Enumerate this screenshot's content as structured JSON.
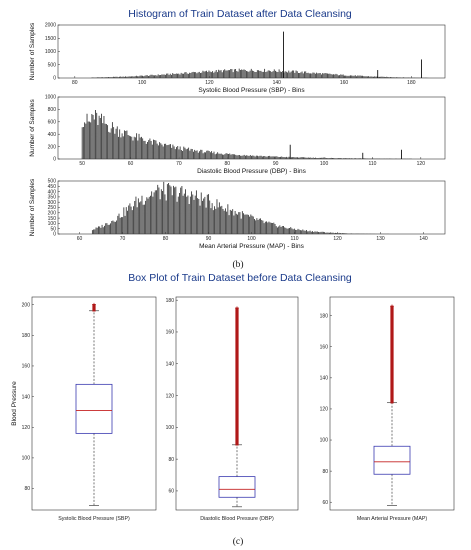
{
  "figure": {
    "top_title": "Histogram of Train Dataset after Data Cleansing",
    "top_caption": "(b)",
    "bottom_title": "Box Plot of Train Dataset before Data Cleansing",
    "bottom_caption": "(c)"
  },
  "colors": {
    "title": "#1a3a8a",
    "bars": "#3c3c3c",
    "box": "#3a3ab0",
    "median": "#c42020",
    "outlier": "#b01818"
  },
  "chart_data": [
    {
      "type": "bar",
      "subtype": "histogram",
      "xlabel": "Systolic Blood Pressure (SBP) - Bins",
      "ylabel": "Number of Samples",
      "xlim": [
        75,
        190
      ],
      "ylim": [
        0,
        2000
      ],
      "xticks": [
        80,
        100,
        120,
        140,
        160,
        180
      ],
      "yticks": [
        0,
        500,
        1000,
        1500,
        2000
      ],
      "density_peak_x": 132,
      "density_peak_y": 300,
      "density_range": [
        85,
        185
      ],
      "spikes": [
        {
          "x": 142,
          "y": 1750
        },
        {
          "x": 170,
          "y": 300
        },
        {
          "x": 183,
          "y": 700
        }
      ]
    },
    {
      "type": "bar",
      "subtype": "histogram",
      "xlabel": "Diastolic Blood Pressure (DBP) - Bins",
      "ylabel": "Number of Samples",
      "xlim": [
        45,
        125
      ],
      "ylim": [
        0,
        1000
      ],
      "xticks": [
        50,
        60,
        70,
        80,
        90,
        100,
        110,
        120
      ],
      "yticks": [
        0,
        200,
        400,
        600,
        800,
        1000
      ],
      "density_peak_x": 52,
      "density_peak_y": 720,
      "density_range": [
        50,
        118
      ],
      "spikes": [
        {
          "x": 93,
          "y": 230
        },
        {
          "x": 108,
          "y": 100
        },
        {
          "x": 116,
          "y": 150
        }
      ]
    },
    {
      "type": "bar",
      "subtype": "histogram",
      "xlabel": "Mean Arterial Pressure (MAP) - Bins",
      "ylabel": "Number of Samples",
      "xlim": [
        55,
        145
      ],
      "ylim": [
        0,
        500
      ],
      "xticks": [
        60,
        70,
        80,
        90,
        100,
        110,
        120,
        130,
        140
      ],
      "yticks": [
        0,
        50,
        100,
        150,
        200,
        250,
        300,
        350,
        400,
        450,
        500
      ],
      "density_peak_x": 79,
      "density_peak_y": 410,
      "density_range": [
        63,
        132
      ],
      "spikes": []
    },
    {
      "type": "box",
      "xlabel": "Systolic Blood Pressure (SBP)",
      "ylabel": "Blood Pressure",
      "ylim": [
        66,
        205
      ],
      "yticks": [
        80,
        100,
        120,
        140,
        160,
        180,
        200
      ],
      "whisker_low": 69,
      "q1": 116,
      "median": 131,
      "q3": 148,
      "whisker_high": 196,
      "outlier_range": [
        196,
        200
      ]
    },
    {
      "type": "box",
      "xlabel": "Diastolic Blood Pressure (DBP)",
      "ylabel": "",
      "ylim": [
        48,
        182
      ],
      "yticks": [
        60,
        80,
        100,
        120,
        140,
        160,
        180
      ],
      "whisker_low": 50,
      "q1": 56,
      "median": 61,
      "q3": 69,
      "whisker_high": 89,
      "outlier_range": [
        89,
        175
      ]
    },
    {
      "type": "box",
      "xlabel": "Mean Arterial Pressure (MAP)",
      "ylabel": "",
      "ylim": [
        55,
        192
      ],
      "yticks": [
        60,
        80,
        100,
        120,
        140,
        160,
        180
      ],
      "whisker_low": 58,
      "q1": 78,
      "median": 86,
      "q3": 96,
      "whisker_high": 124,
      "outlier_range": [
        124,
        186
      ]
    }
  ]
}
